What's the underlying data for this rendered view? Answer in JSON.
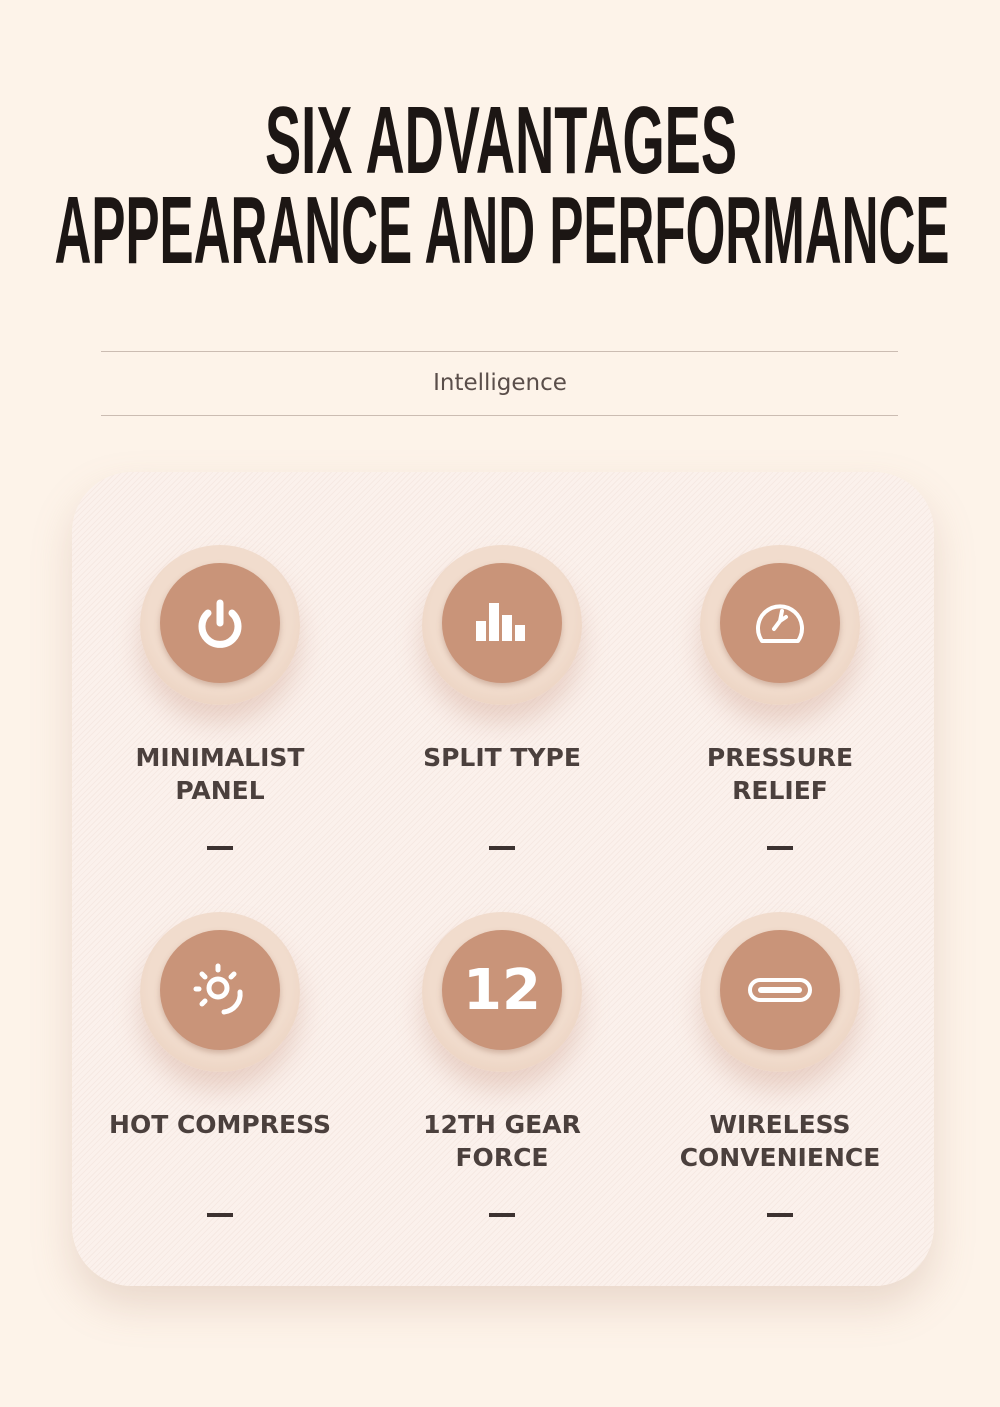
{
  "header": {
    "title_line1": "SIX ADVANTAGES",
    "title_line2": "APPEARANCE AND PERFORMANCE",
    "subtitle": "Intelligence"
  },
  "colors": {
    "background": "#fdf3e9",
    "button": "#c99479",
    "text": "#4b403d"
  },
  "features": [
    {
      "label": "MINIMALIST PANEL",
      "icon": "power-icon"
    },
    {
      "label": "SPLIT TYPE",
      "icon": "bar-chart-icon"
    },
    {
      "label": "PRESSURE RELIEF",
      "icon": "gauge-icon"
    },
    {
      "label": "HOT COMPRESS",
      "icon": "sun-heat-icon"
    },
    {
      "label": "12TH GEAR FORCE",
      "icon": "number-icon",
      "icon_text": "12"
    },
    {
      "label": "WIRELESS CONVENIENCE",
      "icon": "usb-c-icon"
    }
  ]
}
